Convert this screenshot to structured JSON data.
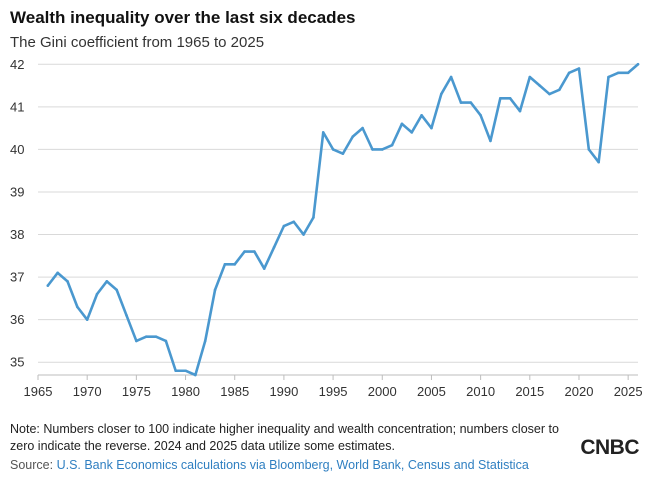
{
  "header": {
    "title": "Wealth inequality over the last six decades",
    "subtitle": "The Gini coefficient from 1965 to 2025"
  },
  "footer": {
    "note": "Note: Numbers closer to 100 indicate higher inequality and wealth concentration; numbers closer to zero indicate the reverse. 2024 and 2025 data utilize some estimates.",
    "source_label": "Source: ",
    "source_text": "U.S. Bank Economics calculations via Bloomberg, World Bank, Census and Statistica",
    "logo": "CNBC"
  },
  "colors": {
    "line": "#4a98cf",
    "grid": "#d9d9d9",
    "axis": "#bdbdbd"
  },
  "chart_data": {
    "type": "line",
    "title": "Wealth inequality over the last six decades",
    "subtitle": "The Gini coefficient from 1965 to 2025",
    "xlabel": "",
    "ylabel": "",
    "xlim": [
      1965,
      2026
    ],
    "ylim": [
      34.7,
      42.1
    ],
    "x_ticks": [
      1965,
      1970,
      1975,
      1980,
      1985,
      1990,
      1995,
      2000,
      2005,
      2010,
      2015,
      2020,
      2025
    ],
    "y_ticks": [
      35,
      36,
      37,
      38,
      39,
      40,
      41,
      42
    ],
    "grid": "horizontal",
    "series": [
      {
        "name": "Gini coefficient",
        "x": [
          1966,
          1967,
          1968,
          1969,
          1970,
          1971,
          1972,
          1973,
          1974,
          1975,
          1976,
          1977,
          1978,
          1979,
          1980,
          1981,
          1982,
          1983,
          1984,
          1985,
          1986,
          1987,
          1988,
          1989,
          1990,
          1991,
          1992,
          1993,
          1994,
          1995,
          1996,
          1997,
          1998,
          1999,
          2000,
          2001,
          2002,
          2003,
          2004,
          2005,
          2006,
          2007,
          2008,
          2009,
          2010,
          2011,
          2012,
          2013,
          2014,
          2015,
          2016,
          2017,
          2018,
          2019,
          2020,
          2021,
          2022,
          2023,
          2024,
          2025,
          2026
        ],
        "values": [
          36.8,
          37.1,
          36.9,
          36.3,
          36.0,
          36.6,
          36.9,
          36.7,
          36.1,
          35.5,
          35.6,
          35.6,
          35.5,
          34.8,
          34.8,
          34.7,
          35.5,
          36.7,
          37.3,
          37.3,
          37.6,
          37.6,
          37.2,
          37.7,
          38.2,
          38.3,
          38.0,
          38.4,
          40.4,
          40.0,
          39.9,
          40.3,
          40.5,
          40.0,
          40.0,
          40.1,
          40.6,
          40.4,
          40.8,
          40.5,
          41.3,
          41.7,
          41.1,
          41.1,
          40.8,
          40.2,
          41.2,
          41.2,
          40.9,
          41.7,
          41.5,
          41.3,
          41.4,
          41.8,
          41.9,
          40.0,
          39.7,
          41.7,
          41.8,
          41.8,
          42.0
        ]
      }
    ]
  }
}
